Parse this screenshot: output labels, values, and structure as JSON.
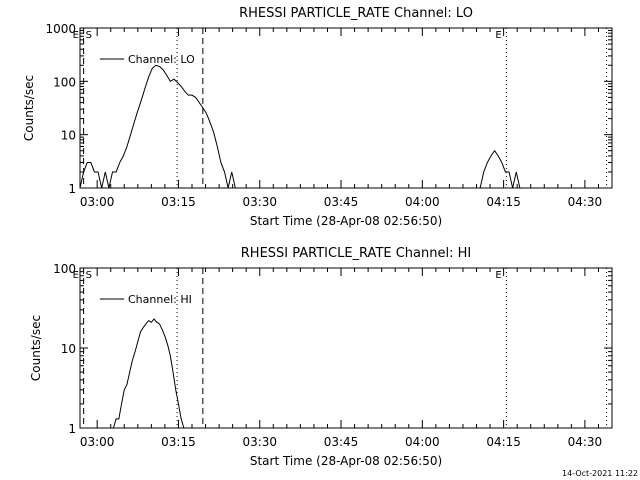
{
  "footer_timestamp": "14-Oct-2021 11:22",
  "chart_data": [
    {
      "type": "line",
      "title": "RHESSI PARTICLE_RATE Channel: LO",
      "xlabel": "Start Time (28-Apr-08 02:56:50)",
      "ylabel": "Counts/sec",
      "y_scale": "log",
      "ylim": [
        1,
        1000
      ],
      "y_tick_labels": [
        "1",
        "10",
        "100",
        "1000"
      ],
      "xlim": [
        "02:56:50",
        "04:35:00"
      ],
      "x_tick_labels": [
        "03:00",
        "03:15",
        "03:30",
        "03:45",
        "04:00",
        "04:15",
        "04:30"
      ],
      "legend": "top-left",
      "series": [
        {
          "name": "Channel: LO",
          "x": [
            "02:56:50",
            "02:57:30",
            "02:58:10",
            "02:58:50",
            "02:59:30",
            "03:00:10",
            "03:00:50",
            "03:01:30",
            "03:02:10",
            "03:02:50",
            "03:03:30",
            "03:04:10",
            "03:04:50",
            "03:05:30",
            "03:06:10",
            "03:06:50",
            "03:07:30",
            "03:08:10",
            "03:08:50",
            "03:09:30",
            "03:10:10",
            "03:10:50",
            "03:11:30",
            "03:12:10",
            "03:12:50",
            "03:13:30",
            "03:14:10",
            "03:14:50",
            "03:15:30",
            "03:16:10",
            "03:16:50",
            "03:17:30",
            "03:18:10",
            "03:18:50",
            "03:19:30",
            "03:20:10",
            "03:20:50",
            "03:21:30",
            "03:22:10",
            "03:22:50",
            "03:23:30",
            "03:24:10",
            "03:24:50",
            "03:25:30",
            "03:26:10",
            "03:26:50",
            "03:27:30",
            "04:10:40",
            "04:11:20",
            "04:12:00",
            "04:12:40",
            "04:13:20",
            "04:14:00",
            "04:14:40",
            "04:15:20",
            "04:16:00",
            "04:16:40",
            "04:17:20",
            "04:18:00",
            "04:18:40",
            "04:19:20",
            "04:20:00",
            "04:20:40",
            "04:21:20"
          ],
          "values": [
            1,
            2,
            3,
            3,
            2,
            2,
            1,
            2,
            1,
            2,
            2,
            3,
            4,
            6,
            10,
            17,
            28,
            45,
            75,
            120,
            175,
            200,
            190,
            165,
            130,
            100,
            110,
            95,
            80,
            65,
            55,
            55,
            50,
            40,
            32,
            25,
            17,
            11,
            6,
            3,
            2,
            1,
            2,
            1,
            1,
            1,
            1,
            1,
            2,
            3,
            4,
            5,
            4,
            3,
            2,
            2,
            1,
            2,
            1,
            1,
            1,
            1,
            1,
            1
          ]
        }
      ],
      "markers": [
        {
          "time": "02:57:30",
          "style": "dashed",
          "label": "E",
          "label2": "S"
        },
        {
          "time": "03:14:45",
          "style": "dotted",
          "label": ""
        },
        {
          "time": "03:19:30",
          "style": "dashed",
          "label": ""
        },
        {
          "time": "04:15:30",
          "style": "dotted",
          "label": "E"
        },
        {
          "time": "04:34:00",
          "style": "dotted",
          "label": ""
        }
      ]
    },
    {
      "type": "line",
      "title": "RHESSI PARTICLE_RATE Channel: HI",
      "xlabel": "Start Time (28-Apr-08 02:56:50)",
      "ylabel": "Counts/sec",
      "y_scale": "log",
      "ylim": [
        1,
        100
      ],
      "y_tick_labels": [
        "1",
        "10",
        "100"
      ],
      "xlim": [
        "02:56:50",
        "04:35:00"
      ],
      "x_tick_labels": [
        "03:00",
        "03:15",
        "03:30",
        "03:45",
        "04:00",
        "04:15",
        "04:30"
      ],
      "legend": "top-left",
      "series": [
        {
          "name": "Channel: HI",
          "x": [
            "03:03:00",
            "03:03:30",
            "03:04:00",
            "03:04:30",
            "03:05:00",
            "03:05:30",
            "03:06:00",
            "03:06:30",
            "03:07:00",
            "03:07:30",
            "03:08:00",
            "03:08:30",
            "03:09:00",
            "03:09:30",
            "03:10:00",
            "03:10:30",
            "03:11:00",
            "03:11:30",
            "03:12:00",
            "03:12:30",
            "03:13:00",
            "03:13:30",
            "03:14:00",
            "03:14:30",
            "03:15:00",
            "03:15:30",
            "03:16:00"
          ],
          "values": [
            1,
            1.3,
            1.3,
            2,
            3,
            3.5,
            5,
            7,
            9,
            12,
            16,
            18,
            20,
            22,
            21,
            23,
            21,
            20,
            17,
            14,
            11,
            8,
            5,
            3,
            2,
            1.3,
            1
          ]
        }
      ],
      "markers": [
        {
          "time": "02:57:30",
          "style": "dashed",
          "label": "E",
          "label2": "S"
        },
        {
          "time": "03:14:45",
          "style": "dotted",
          "label": ""
        },
        {
          "time": "03:19:30",
          "style": "dashed",
          "label": ""
        },
        {
          "time": "04:15:30",
          "style": "dotted",
          "label": "E"
        },
        {
          "time": "04:34:00",
          "style": "dotted",
          "label": ""
        }
      ]
    }
  ]
}
